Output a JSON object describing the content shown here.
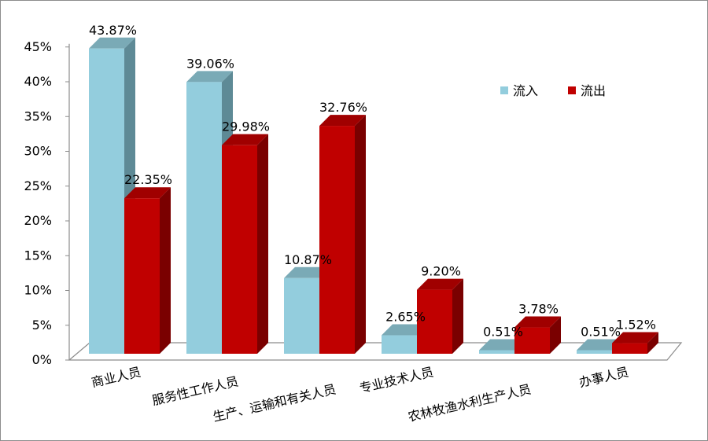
{
  "chart_data": {
    "type": "bar",
    "categories": [
      "商业人员",
      "服务性工作人员",
      "生产、运输和有关人员",
      "专业技术人员",
      "农林牧渔水利生产人员",
      "办事人员"
    ],
    "series": [
      {
        "name": "流入",
        "values": [
          43.87,
          39.06,
          10.87,
          2.65,
          0.51,
          0.51
        ],
        "labels": [
          "43.87%",
          "39.06%",
          "10.87%",
          "2.65%",
          "0.51%",
          "0.51%"
        ]
      },
      {
        "name": "流出",
        "values": [
          22.35,
          29.98,
          32.76,
          9.2,
          3.78,
          1.52
        ],
        "labels": [
          "22.35%",
          "29.98%",
          "32.76%",
          "9.20%",
          "3.78%",
          "1.52%"
        ]
      }
    ],
    "ylim": [
      0,
      45
    ],
    "yticks": [
      "0%",
      "5%",
      "10%",
      "15%",
      "20%",
      "25%",
      "30%",
      "35%",
      "40%",
      "45%"
    ],
    "legend": "right",
    "grid": false,
    "colors": {
      "inflow_front": "#93cddd",
      "inflow_side": "#5e8a96",
      "inflow_top": "#7aaab6",
      "outflow_front": "#c00000",
      "outflow_side": "#7a0000",
      "outflow_top": "#a00000"
    }
  }
}
